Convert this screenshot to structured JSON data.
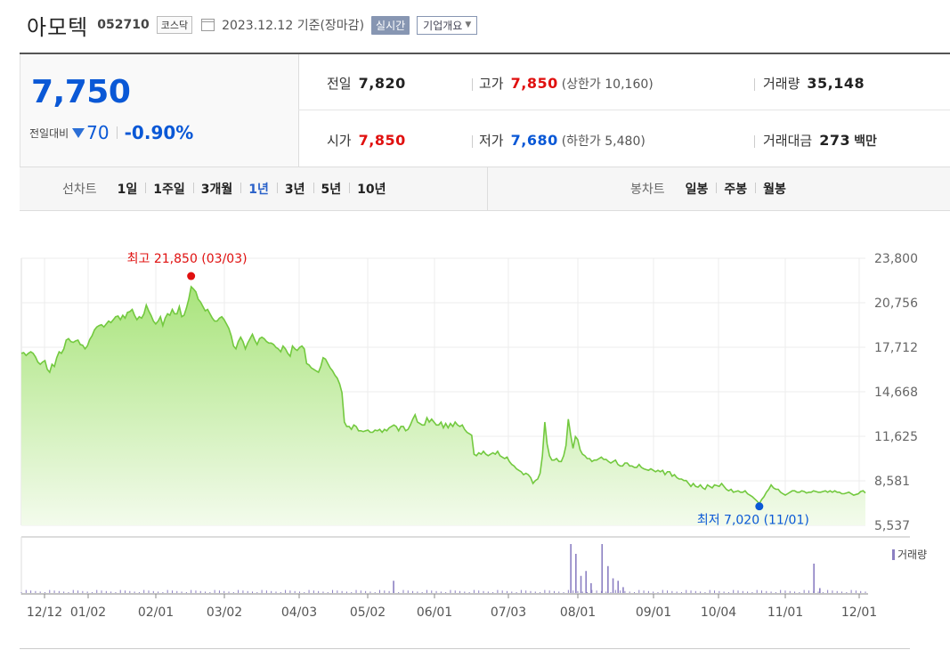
{
  "header": {
    "name": "아모텍",
    "code": "052710",
    "market": "코스닥",
    "date": "2023.12.12",
    "basis": "기준(장마감)",
    "realtime_label": "실시간",
    "overview_label": "기업개요",
    "calendar_icon": "calendar-icon",
    "caret_icon": "caret-down-icon"
  },
  "price": {
    "current": "7,750",
    "change_label": "전일대비",
    "change_value": "70",
    "change_pct": "-0.90%",
    "direction_icon": "down-triangle-icon"
  },
  "stats": {
    "prev_close": {
      "label": "전일",
      "value": "7,820"
    },
    "high": {
      "label": "고가",
      "value": "7,850",
      "sub": "(상한가 10,160)"
    },
    "volume": {
      "label": "거래량",
      "value": "35,148"
    },
    "open": {
      "label": "시가",
      "value": "7,850"
    },
    "low": {
      "label": "저가",
      "value": "7,680",
      "sub": "(하한가 5,480)"
    },
    "amount": {
      "label": "거래대금",
      "value": "273",
      "unit": "백만"
    }
  },
  "line_tabs": {
    "label": "선차트",
    "items": [
      "1일",
      "1주일",
      "3개월",
      "1년",
      "3년",
      "5년",
      "10년"
    ],
    "active": "1년"
  },
  "candle_tabs": {
    "label": "봉차트",
    "items": [
      "일봉",
      "주봉",
      "월봉"
    ]
  },
  "colors": {
    "up": "#e0100f",
    "down": "#0a58d6",
    "line": "#73c93f",
    "volume": "#8b7fc2"
  },
  "chart_data": {
    "type": "area",
    "yticks": [
      23800,
      20756,
      17712,
      14668,
      11625,
      8581,
      5537
    ],
    "ylim": [
      5537,
      23800
    ],
    "xticks": [
      "12/12",
      "01/02",
      "02/01",
      "03/02",
      "04/03",
      "05/02",
      "06/01",
      "07/03",
      "08/01",
      "09/01",
      "10/04",
      "11/01",
      "12/01"
    ],
    "series": [
      {
        "values": [
          17300,
          17350,
          17150,
          17300,
          17400,
          17300,
          17050,
          16700,
          16550,
          16700,
          16800,
          16200,
          16000,
          16550,
          16400,
          17000,
          17400,
          17300,
          17600,
          18200,
          18300,
          18100,
          18050,
          18150,
          18200,
          17900,
          17850,
          17600,
          17800,
          18250,
          18500,
          18900,
          19100,
          19200,
          19250,
          19100,
          19300,
          19500,
          19400,
          19600,
          19800,
          19850,
          19600,
          19900,
          19700,
          20100,
          20150,
          20300,
          19900,
          19600,
          19800,
          19700,
          20000,
          20600,
          20200,
          19900,
          19500,
          19300,
          19500,
          19800,
          19200,
          19700,
          20000,
          19900,
          20300,
          20000,
          20000,
          20500,
          19800,
          19900,
          20400,
          21000,
          21850,
          21700,
          21500,
          21000,
          20800,
          20500,
          20200,
          20300,
          20000,
          19700,
          19500,
          19500,
          19700,
          19800,
          19600,
          19300,
          19000,
          18500,
          17800,
          17600,
          18100,
          18400,
          18100,
          17600,
          18000,
          18300,
          18600,
          18200,
          17900,
          18300,
          18400,
          18300,
          18100,
          18000,
          18000,
          17900,
          17700,
          17600,
          17400,
          17800,
          17600,
          17300,
          17100,
          17800,
          17600,
          17500,
          17700,
          17800,
          17600,
          16600,
          16500,
          16300,
          16200,
          16100,
          16000,
          16400,
          17000,
          16900,
          16600,
          16300,
          16100,
          15800,
          15600,
          15200,
          14600,
          12600,
          12300,
          12300,
          12100,
          12400,
          12300,
          12000,
          12000,
          11950,
          12000,
          12050,
          11900,
          11900,
          12050,
          12000,
          12100,
          11900,
          12100,
          12000,
          12200,
          12300,
          12400,
          12300,
          12000,
          12300,
          12300,
          12000,
          12100,
          12400,
          12800,
          13100,
          12600,
          12500,
          12400,
          12400,
          12900,
          12600,
          12800,
          12600,
          12400,
          12400,
          12600,
          12200,
          12500,
          12200,
          12500,
          12300,
          12600,
          12400,
          12300,
          12400,
          12100,
          11900,
          11800,
          11700,
          10400,
          10300,
          10500,
          10400,
          10600,
          10400,
          10300,
          10400,
          10500,
          10400,
          10600,
          10300,
          10200,
          10100,
          10200,
          9900,
          9700,
          9600,
          9400,
          9300,
          9200,
          9000,
          9100,
          9000,
          8800,
          8400,
          8600,
          8700,
          9100,
          10300,
          12600,
          11100,
          10300,
          10000,
          10000,
          10100,
          9900,
          9900,
          10300,
          11000,
          12800,
          11700,
          10800,
          11600,
          11400,
          10700,
          10400,
          10300,
          10100,
          10100,
          9900,
          10000,
          10000,
          10100,
          10200,
          10050,
          10050,
          9900,
          9800,
          9900,
          10000,
          9700,
          9600,
          9600,
          9800,
          9800,
          9600,
          9600,
          9500,
          9500,
          9700,
          9500,
          9400,
          9350,
          9300,
          9400,
          9300,
          9200,
          9300,
          9200,
          9300,
          9000,
          9200,
          9200,
          8900,
          9000,
          8800,
          8700,
          8700,
          8600,
          8600,
          8400,
          8200,
          8400,
          8200,
          8150,
          8300,
          8100,
          8000,
          8300,
          8200,
          8100,
          8300,
          8250,
          8200,
          8400,
          8200,
          8000,
          7900,
          8000,
          7800,
          7850,
          7900,
          7800,
          7800,
          7900,
          7700,
          7600,
          7500,
          7350,
          7200,
          7020,
          7300,
          7500,
          7800,
          8000,
          8300,
          8100,
          8000,
          8000,
          7800,
          7700,
          7600,
          7700,
          7800,
          7900,
          7900,
          7800,
          7800,
          7900,
          7850,
          7750,
          7800,
          7800,
          7900,
          7850,
          7800,
          7800,
          7850,
          7900,
          7800,
          7900,
          7800,
          7900,
          7800,
          7800,
          7700,
          7700,
          7750,
          7800,
          7700,
          7600,
          7650,
          7700,
          7850,
          7900,
          7750
        ]
      }
    ],
    "max_label": "최고 21,850 (03/03)",
    "min_label": "최저 7,020 (11/01)",
    "volume_legend": "거래량",
    "volume_spikes": [
      {
        "at": 0.651,
        "height": 1.0
      },
      {
        "at": 0.657,
        "height": 0.8
      },
      {
        "at": 0.663,
        "height": 0.35
      },
      {
        "at": 0.669,
        "height": 0.45
      },
      {
        "at": 0.675,
        "height": 0.2
      },
      {
        "at": 0.688,
        "height": 1.0
      },
      {
        "at": 0.695,
        "height": 0.55
      },
      {
        "at": 0.701,
        "height": 0.3
      },
      {
        "at": 0.707,
        "height": 0.25
      },
      {
        "at": 0.713,
        "height": 0.12
      },
      {
        "at": 0.441,
        "height": 0.25
      },
      {
        "at": 0.939,
        "height": 0.6
      },
      {
        "at": 0.946,
        "height": 0.1
      }
    ]
  }
}
